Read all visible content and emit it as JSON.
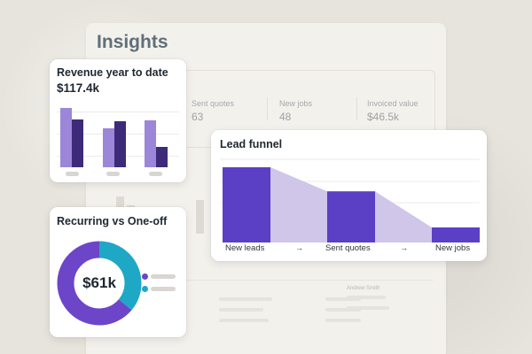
{
  "page": {
    "title": "Insights"
  },
  "stats": [
    {
      "label": "Sent quotes",
      "value": "63"
    },
    {
      "label": "New jobs",
      "value": "48"
    },
    {
      "label": "Invoiced value",
      "value": "$46.5k"
    }
  ],
  "background_list": {
    "name": "Andrew Smith"
  },
  "revenue_card": {
    "title": "Revenue year to date",
    "amount": "$117.4k",
    "chart_data": {
      "type": "bar",
      "categories": [
        "",
        "",
        ""
      ],
      "series": [
        {
          "values": [
            72,
            47,
            57
          ]
        },
        {
          "values": [
            58,
            55,
            25
          ]
        }
      ],
      "ylim": [
        0,
        80
      ],
      "colors": [
        "#9b86d9",
        "#3d2b79"
      ]
    }
  },
  "recurring_card": {
    "title": "Recurring vs One-off",
    "center_label": "$61k",
    "chart_data": {
      "type": "pie",
      "values": [
        64,
        36
      ],
      "colors": [
        "#6d45c9",
        "#1fa7c6"
      ]
    }
  },
  "funnel_card": {
    "title": "Lead funnel",
    "arrow": "→",
    "stages": [
      "New leads",
      "Sent quotes",
      "New jobs"
    ],
    "chart_data": {
      "type": "bar",
      "categories": [
        "New leads",
        "Sent quotes",
        "New jobs"
      ],
      "values": [
        100,
        68,
        20
      ],
      "colors": [
        "#5b3fc4",
        "#cfc6ea"
      ]
    }
  }
}
